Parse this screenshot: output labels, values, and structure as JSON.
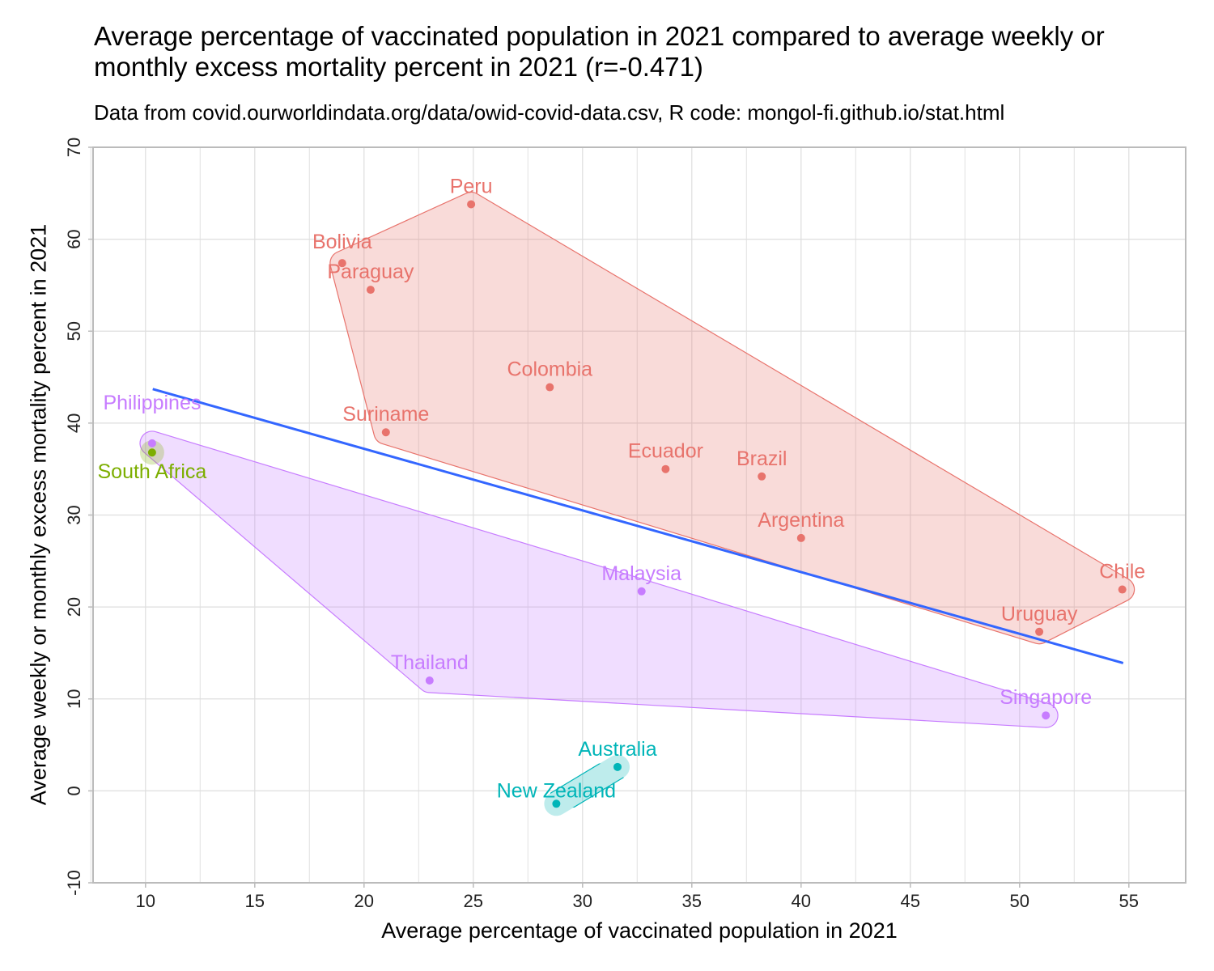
{
  "chart_data": {
    "type": "scatter",
    "title": "Average percentage of vaccinated population in 2021 compared to average weekly or monthly excess mortality percent in 2021 (r=-0.471)",
    "subtitle": "Data from covid.ourworldindata.org/data/owid-covid-data.csv, R code: mongol-fi.github.io/stat.html",
    "xlabel": "Average percentage of vaccinated population in 2021",
    "ylabel": "Average weekly or monthly excess mortality percent in 2021",
    "xlim": [
      7.6,
      57.6
    ],
    "ylim": [
      -10,
      70
    ],
    "xticks": [
      10,
      15,
      20,
      25,
      30,
      35,
      40,
      45,
      50,
      55
    ],
    "yticks": [
      -10,
      0,
      10,
      20,
      30,
      40,
      50,
      60,
      70
    ],
    "grid": true,
    "legend": "none",
    "group_colors": {
      "red": "#E8736C",
      "purple": "#C77CFF",
      "teal": "#00B5B8",
      "green": "#7CAE00"
    },
    "regression_line": {
      "color": "#3366FF",
      "x": [
        10.33,
        54.74
      ],
      "y": [
        43.7,
        13.9
      ]
    },
    "points": [
      {
        "label": "Peru",
        "x": 24.9,
        "y": 63.8,
        "group": "red"
      },
      {
        "label": "Bolivia",
        "x": 19.0,
        "y": 57.4,
        "group": "red"
      },
      {
        "label": "Paraguay",
        "x": 20.3,
        "y": 54.5,
        "group": "red"
      },
      {
        "label": "Colombia",
        "x": 28.5,
        "y": 43.9,
        "group": "red"
      },
      {
        "label": "Suriname",
        "x": 21.0,
        "y": 39.0,
        "group": "red"
      },
      {
        "label": "Ecuador",
        "x": 33.8,
        "y": 35.0,
        "group": "red"
      },
      {
        "label": "Brazil",
        "x": 38.2,
        "y": 34.2,
        "group": "red"
      },
      {
        "label": "Argentina",
        "x": 40.0,
        "y": 27.5,
        "group": "red"
      },
      {
        "label": "Chile",
        "x": 54.7,
        "y": 21.9,
        "group": "red"
      },
      {
        "label": "Uruguay",
        "x": 50.9,
        "y": 17.3,
        "group": "red"
      },
      {
        "label": "Philippines",
        "x": 10.3,
        "y": 37.8,
        "group": "purple"
      },
      {
        "label": "Malaysia",
        "x": 32.7,
        "y": 21.7,
        "group": "purple"
      },
      {
        "label": "Thailand",
        "x": 23.0,
        "y": 12.0,
        "group": "purple"
      },
      {
        "label": "Singapore",
        "x": 51.2,
        "y": 8.2,
        "group": "purple"
      },
      {
        "label": "Australia",
        "x": 31.6,
        "y": 2.6,
        "group": "teal"
      },
      {
        "label": "New Zealand",
        "x": 28.8,
        "y": -1.4,
        "group": "teal"
      },
      {
        "label": "South Africa",
        "x": 10.3,
        "y": 36.8,
        "group": "green"
      }
    ]
  }
}
